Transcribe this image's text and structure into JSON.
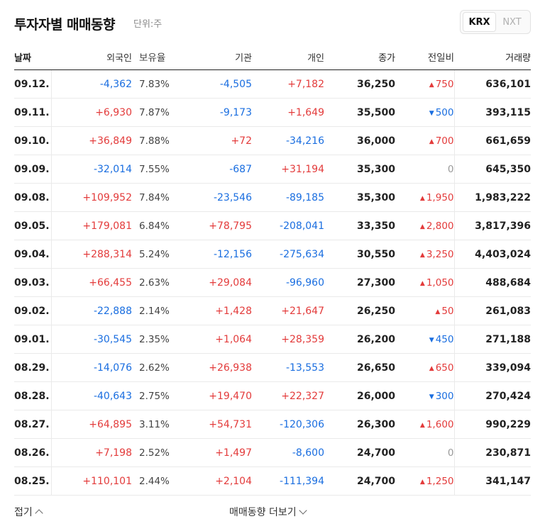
{
  "header": {
    "title": "투자자별 매매동향",
    "unit": "단위:주",
    "tabs": [
      {
        "label": "KRX",
        "active": true
      },
      {
        "label": "NXT",
        "active": false
      }
    ]
  },
  "columns": [
    "날짜",
    "외국인",
    "보유율",
    "기관",
    "개인",
    "종가",
    "전일비",
    "거래량"
  ],
  "rows": [
    {
      "date": "09.12.",
      "foreign": "-4,362",
      "holding": "7.83%",
      "institution": "-4,505",
      "individual": "+7,182",
      "close": "36,250",
      "change": "750",
      "dir": "up",
      "volume": "636,101"
    },
    {
      "date": "09.11.",
      "foreign": "+6,930",
      "holding": "7.87%",
      "institution": "-9,173",
      "individual": "+1,649",
      "close": "35,500",
      "change": "500",
      "dir": "down",
      "volume": "393,115"
    },
    {
      "date": "09.10.",
      "foreign": "+36,849",
      "holding": "7.88%",
      "institution": "+72",
      "individual": "-34,216",
      "close": "36,000",
      "change": "700",
      "dir": "up",
      "volume": "661,659"
    },
    {
      "date": "09.09.",
      "foreign": "-32,014",
      "holding": "7.55%",
      "institution": "-687",
      "individual": "+31,194",
      "close": "35,300",
      "change": "0",
      "dir": "flat",
      "volume": "645,350"
    },
    {
      "date": "09.08.",
      "foreign": "+109,952",
      "holding": "7.84%",
      "institution": "-23,546",
      "individual": "-89,185",
      "close": "35,300",
      "change": "1,950",
      "dir": "up",
      "volume": "1,983,222"
    },
    {
      "date": "09.05.",
      "foreign": "+179,081",
      "holding": "6.84%",
      "institution": "+78,795",
      "individual": "-208,041",
      "close": "33,350",
      "change": "2,800",
      "dir": "up",
      "volume": "3,817,396"
    },
    {
      "date": "09.04.",
      "foreign": "+288,314",
      "holding": "5.24%",
      "institution": "-12,156",
      "individual": "-275,634",
      "close": "30,550",
      "change": "3,250",
      "dir": "up",
      "volume": "4,403,024"
    },
    {
      "date": "09.03.",
      "foreign": "+66,455",
      "holding": "2.63%",
      "institution": "+29,084",
      "individual": "-96,960",
      "close": "27,300",
      "change": "1,050",
      "dir": "up",
      "volume": "488,684"
    },
    {
      "date": "09.02.",
      "foreign": "-22,888",
      "holding": "2.14%",
      "institution": "+1,428",
      "individual": "+21,647",
      "close": "26,250",
      "change": "50",
      "dir": "up",
      "volume": "261,083"
    },
    {
      "date": "09.01.",
      "foreign": "-30,545",
      "holding": "2.35%",
      "institution": "+1,064",
      "individual": "+28,359",
      "close": "26,200",
      "change": "450",
      "dir": "down",
      "volume": "271,188"
    },
    {
      "date": "08.29.",
      "foreign": "-14,076",
      "holding": "2.62%",
      "institution": "+26,938",
      "individual": "-13,553",
      "close": "26,650",
      "change": "650",
      "dir": "up",
      "volume": "339,094"
    },
    {
      "date": "08.28.",
      "foreign": "-40,643",
      "holding": "2.75%",
      "institution": "+19,470",
      "individual": "+22,327",
      "close": "26,000",
      "change": "300",
      "dir": "down",
      "volume": "270,424"
    },
    {
      "date": "08.27.",
      "foreign": "+64,895",
      "holding": "3.11%",
      "institution": "+54,731",
      "individual": "-120,306",
      "close": "26,300",
      "change": "1,600",
      "dir": "up",
      "volume": "990,229"
    },
    {
      "date": "08.26.",
      "foreign": "+7,198",
      "holding": "2.52%",
      "institution": "+1,497",
      "individual": "-8,600",
      "close": "24,700",
      "change": "0",
      "dir": "flat",
      "volume": "230,871"
    },
    {
      "date": "08.25.",
      "foreign": "+110,101",
      "holding": "2.44%",
      "institution": "+2,104",
      "individual": "-111,394",
      "close": "24,700",
      "change": "1,250",
      "dir": "up",
      "volume": "341,147"
    }
  ],
  "footer": {
    "fold_label": "접기",
    "more_label": "매매동향 더보기"
  },
  "colors": {
    "up": "#e33b3b",
    "down": "#1a6ee0",
    "flat": "#999999"
  },
  "icons": {
    "up": "triangle-up-icon",
    "down": "triangle-down-icon",
    "fold": "chevron-up-icon",
    "more": "chevron-down-icon"
  }
}
